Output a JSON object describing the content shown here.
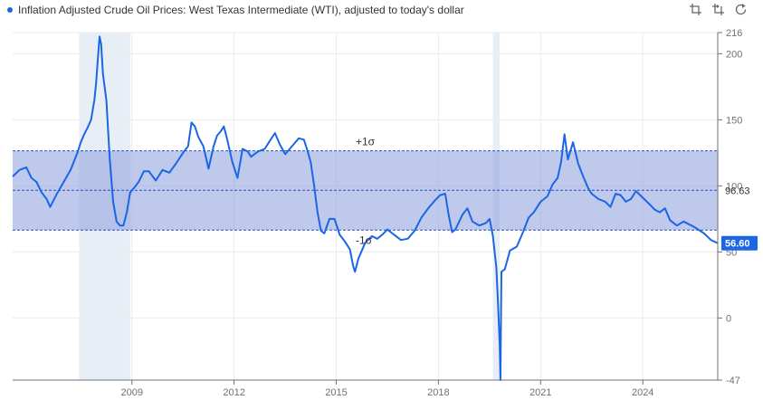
{
  "title": "Inflation Adjusted Crude Oil Prices: West Texas Intermediate (WTI), adjusted to today's dollar",
  "toolbar": {
    "icons": [
      "zoom-select-icon",
      "zoom-reset-icon",
      "restore-icon"
    ]
  },
  "colors": {
    "line": "#1a66e6",
    "band": "#8a9cda",
    "recession": "#e8eef5",
    "grid": "#ececec",
    "axis": "#6e7079",
    "last_value_bg": "#1a66e6"
  },
  "chart_data": {
    "type": "line",
    "title": "Inflation Adjusted Crude Oil Prices: West Texas Intermediate (WTI), adjusted to today's dollar",
    "xlabel": "",
    "ylabel": "",
    "xlim": [
      2006.0,
      2026.7
    ],
    "ylim": [
      -47,
      216
    ],
    "grid": true,
    "x_ticks": [
      "2009",
      "2012",
      "2015",
      "2018",
      "2021",
      "2024"
    ],
    "y_ticks": [
      -47,
      0,
      50,
      100,
      150,
      200,
      216
    ],
    "mean": 96.63,
    "plus_sigma": 126.5,
    "minus_sigma": 66.5,
    "mean_label": "96.63",
    "plus_sigma_label": "+1σ",
    "minus_sigma_label": "-1σ",
    "last_value": 56.6,
    "last_value_label": "56.60",
    "recessions": [
      [
        2007.95,
        2009.45
      ],
      [
        2020.1,
        2020.3
      ]
    ],
    "series": [
      {
        "points": [
          [
            2006.0,
            107
          ],
          [
            2006.2,
            112
          ],
          [
            2006.4,
            114
          ],
          [
            2006.55,
            106
          ],
          [
            2006.7,
            103
          ],
          [
            2006.85,
            95
          ],
          [
            2007.0,
            90
          ],
          [
            2007.1,
            84
          ],
          [
            2007.3,
            94
          ],
          [
            2007.5,
            103
          ],
          [
            2007.7,
            112
          ],
          [
            2007.9,
            125
          ],
          [
            2008.0,
            133
          ],
          [
            2008.1,
            139
          ],
          [
            2008.2,
            144
          ],
          [
            2008.3,
            150
          ],
          [
            2008.4,
            165
          ],
          [
            2008.45,
            178
          ],
          [
            2008.5,
            196
          ],
          [
            2008.55,
            213
          ],
          [
            2008.6,
            207
          ],
          [
            2008.65,
            185
          ],
          [
            2008.75,
            165
          ],
          [
            2008.85,
            120
          ],
          [
            2008.95,
            88
          ],
          [
            2009.05,
            73
          ],
          [
            2009.15,
            70
          ],
          [
            2009.25,
            70
          ],
          [
            2009.35,
            80
          ],
          [
            2009.45,
            95
          ],
          [
            2009.55,
            98
          ],
          [
            2009.7,
            103
          ],
          [
            2009.85,
            111
          ],
          [
            2010.0,
            111
          ],
          [
            2010.2,
            104
          ],
          [
            2010.4,
            112
          ],
          [
            2010.6,
            110
          ],
          [
            2010.8,
            117
          ],
          [
            2011.0,
            125
          ],
          [
            2011.15,
            130
          ],
          [
            2011.25,
            148
          ],
          [
            2011.35,
            145
          ],
          [
            2011.45,
            137
          ],
          [
            2011.6,
            130
          ],
          [
            2011.75,
            113
          ],
          [
            2011.9,
            130
          ],
          [
            2012.0,
            138
          ],
          [
            2012.1,
            141
          ],
          [
            2012.2,
            145
          ],
          [
            2012.3,
            135
          ],
          [
            2012.45,
            118
          ],
          [
            2012.6,
            106
          ],
          [
            2012.75,
            128
          ],
          [
            2012.9,
            126
          ],
          [
            2013.0,
            122
          ],
          [
            2013.2,
            126
          ],
          [
            2013.4,
            128
          ],
          [
            2013.55,
            134
          ],
          [
            2013.7,
            140
          ],
          [
            2013.85,
            131
          ],
          [
            2014.0,
            124
          ],
          [
            2014.2,
            130
          ],
          [
            2014.4,
            136
          ],
          [
            2014.55,
            135
          ],
          [
            2014.65,
            127
          ],
          [
            2014.75,
            118
          ],
          [
            2014.85,
            100
          ],
          [
            2014.95,
            80
          ],
          [
            2015.05,
            66
          ],
          [
            2015.15,
            64
          ],
          [
            2015.3,
            75
          ],
          [
            2015.45,
            75
          ],
          [
            2015.6,
            63
          ],
          [
            2015.75,
            58
          ],
          [
            2015.9,
            52
          ],
          [
            2016.0,
            39
          ],
          [
            2016.05,
            35
          ],
          [
            2016.15,
            45
          ],
          [
            2016.35,
            57
          ],
          [
            2016.55,
            62
          ],
          [
            2016.7,
            60
          ],
          [
            2016.85,
            63
          ],
          [
            2017.0,
            67
          ],
          [
            2017.2,
            63
          ],
          [
            2017.4,
            59
          ],
          [
            2017.6,
            60
          ],
          [
            2017.8,
            66
          ],
          [
            2018.0,
            76
          ],
          [
            2018.2,
            83
          ],
          [
            2018.4,
            89
          ],
          [
            2018.55,
            93
          ],
          [
            2018.7,
            94
          ],
          [
            2018.8,
            78
          ],
          [
            2018.9,
            65
          ],
          [
            2019.0,
            67
          ],
          [
            2019.2,
            78
          ],
          [
            2019.35,
            83
          ],
          [
            2019.5,
            73
          ],
          [
            2019.7,
            70
          ],
          [
            2019.9,
            72
          ],
          [
            2020.0,
            75
          ],
          [
            2020.1,
            62
          ],
          [
            2020.2,
            38
          ],
          [
            2020.25,
            10
          ],
          [
            2020.3,
            -20
          ],
          [
            2020.32,
            -47
          ],
          [
            2020.35,
            35
          ],
          [
            2020.45,
            37
          ],
          [
            2020.6,
            51
          ],
          [
            2020.8,
            54
          ],
          [
            2021.0,
            66
          ],
          [
            2021.15,
            76
          ],
          [
            2021.3,
            80
          ],
          [
            2021.5,
            88
          ],
          [
            2021.7,
            92
          ],
          [
            2021.85,
            101
          ],
          [
            2022.0,
            106
          ],
          [
            2022.1,
            118
          ],
          [
            2022.2,
            139
          ],
          [
            2022.3,
            120
          ],
          [
            2022.45,
            133
          ],
          [
            2022.6,
            117
          ],
          [
            2022.75,
            107
          ],
          [
            2022.9,
            98
          ],
          [
            2023.0,
            94
          ],
          [
            2023.2,
            90
          ],
          [
            2023.4,
            88
          ],
          [
            2023.55,
            84
          ],
          [
            2023.7,
            94
          ],
          [
            2023.85,
            93
          ],
          [
            2024.0,
            88
          ],
          [
            2024.15,
            90
          ],
          [
            2024.3,
            96
          ],
          [
            2024.5,
            91
          ],
          [
            2024.7,
            86
          ],
          [
            2024.85,
            82
          ],
          [
            2025.0,
            80
          ],
          [
            2025.15,
            83
          ],
          [
            2025.3,
            74
          ],
          [
            2025.5,
            70
          ],
          [
            2025.7,
            73
          ],
          [
            2025.85,
            71
          ],
          [
            2026.0,
            69
          ],
          [
            2026.3,
            64
          ],
          [
            2026.5,
            59
          ],
          [
            2026.7,
            56.6
          ]
        ]
      }
    ]
  }
}
